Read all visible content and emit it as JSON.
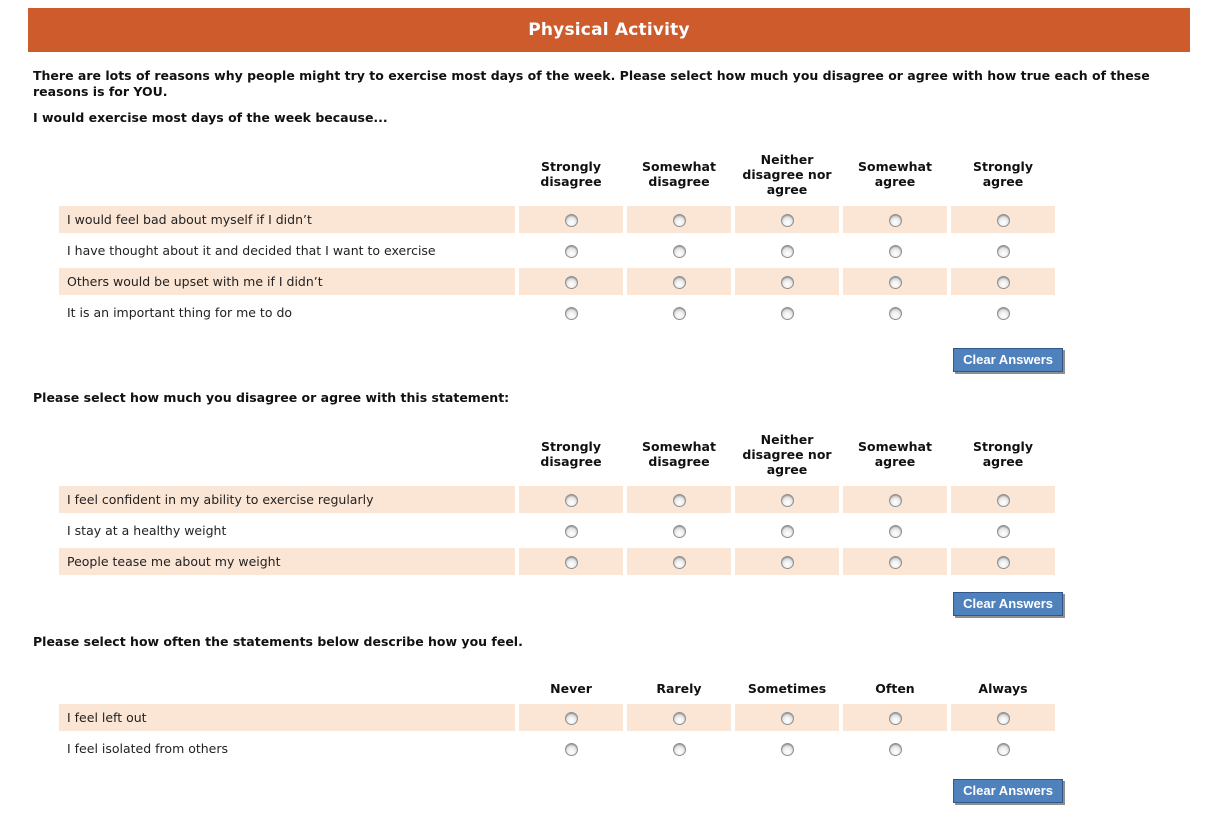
{
  "banner": {
    "title": "Physical Activity"
  },
  "intro": {
    "paragraph": "There are lots of reasons why people might try to exercise most days of the week. Please select how much you disagree or agree with how true each of these reasons is for YOU."
  },
  "colors": {
    "banner_orange": "#cd5b2b",
    "row_highlight_peach": "#fbe5d5",
    "button_blue": "#4f81bd"
  },
  "sections": [
    {
      "heading": "I would exercise most days of the week because...",
      "columns": [
        "Strongly disagree",
        "Somewhat disagree",
        "Neither disagree nor agree",
        "Somewhat agree",
        "Strongly agree"
      ],
      "rows": [
        "I would feel bad about myself if I didn’t",
        "I have thought about it and decided that I want to exercise",
        "Others would be upset with me if I didn’t",
        "It is an important thing for me to do"
      ],
      "clear_label": "Clear Answers"
    },
    {
      "heading": "Please select how much you disagree or agree with this statement:",
      "columns": [
        "Strongly disagree",
        "Somewhat disagree",
        "Neither disagree nor agree",
        "Somewhat agree",
        "Strongly agree"
      ],
      "rows": [
        "I feel confident in my ability to exercise regularly",
        "I stay at a healthy weight",
        "People tease me about my weight"
      ],
      "clear_label": "Clear Answers"
    },
    {
      "heading": "Please select how often the statements below describe how you feel.",
      "columns": [
        "Never",
        "Rarely",
        "Sometimes",
        "Often",
        "Always"
      ],
      "rows": [
        "I feel left out",
        "I feel isolated from others"
      ],
      "clear_label": "Clear Answers"
    }
  ]
}
